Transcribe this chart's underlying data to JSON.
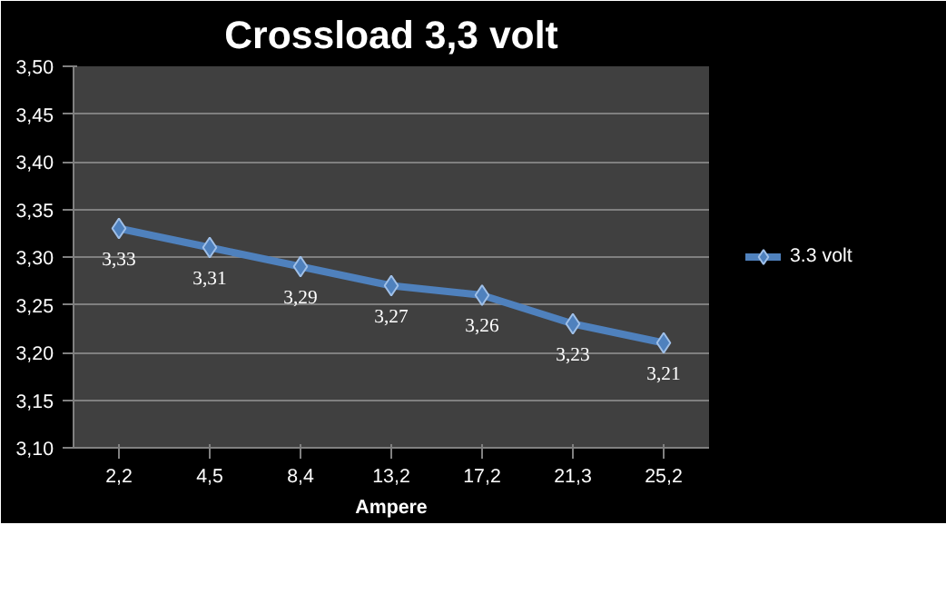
{
  "chart_data": {
    "type": "line",
    "title": "Crossload 3,3 volt",
    "xlabel": "Ampere",
    "categories": [
      "2,2",
      "4,5",
      "8,4",
      "13,2",
      "17,2",
      "21,3",
      "25,2"
    ],
    "series": [
      {
        "name": "3.3 volt",
        "color": "#4f81bd",
        "values": [
          3.33,
          3.31,
          3.29,
          3.27,
          3.26,
          3.23,
          3.21
        ],
        "value_labels": [
          "3,33",
          "3,31",
          "3,29",
          "3,27",
          "3,26",
          "3,23",
          "3,21"
        ]
      }
    ],
    "ylim": [
      3.1,
      3.5
    ],
    "yticks": [
      {
        "value": 3.1,
        "label": "3,10"
      },
      {
        "value": 3.15,
        "label": "3,15"
      },
      {
        "value": 3.2,
        "label": "3,20"
      },
      {
        "value": 3.25,
        "label": "3,25"
      },
      {
        "value": 3.3,
        "label": "3,30"
      },
      {
        "value": 3.35,
        "label": "3,35"
      },
      {
        "value": 3.4,
        "label": "3,40"
      },
      {
        "value": 3.45,
        "label": "3,45"
      },
      {
        "value": 3.5,
        "label": "3,50"
      }
    ],
    "grid": "y",
    "legend": "right",
    "marker": "diamond",
    "line_style": "solid"
  }
}
